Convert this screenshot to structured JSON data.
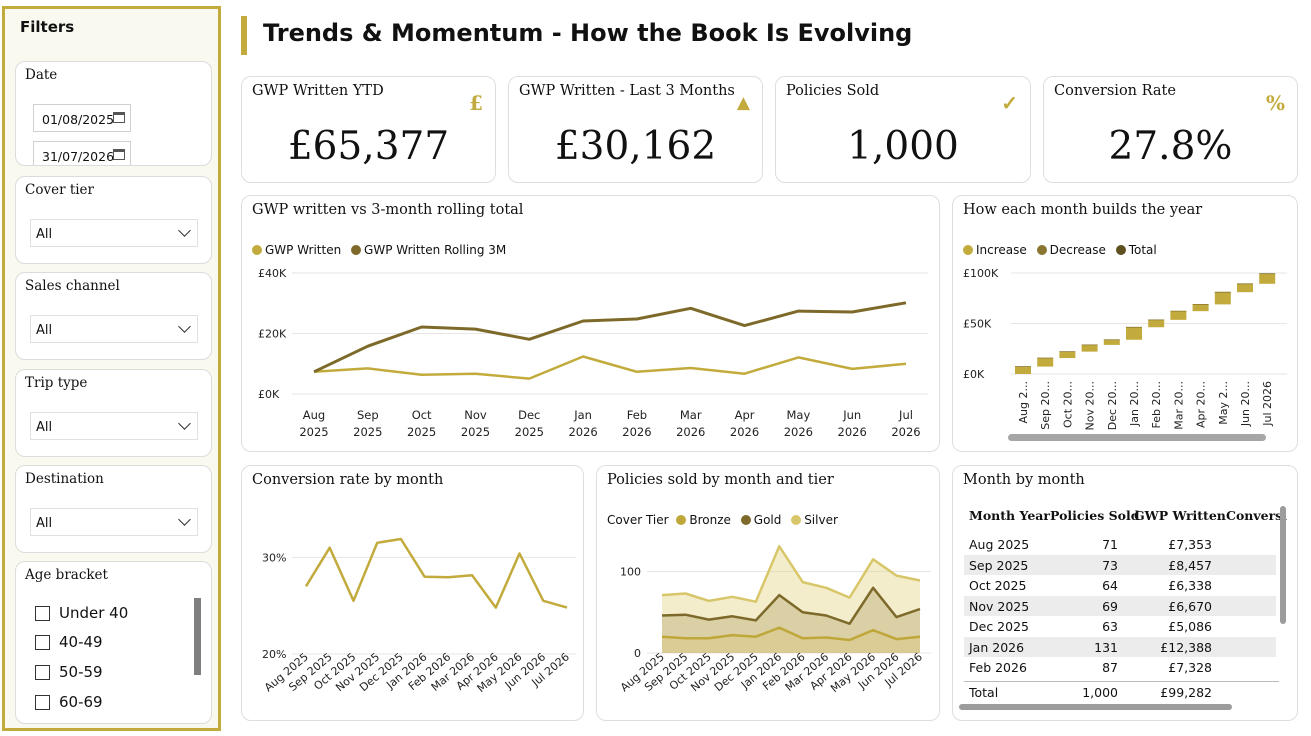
{
  "sidebar": {
    "title": "Filters",
    "date": {
      "label": "Date",
      "start": "01/08/2025",
      "end": "31/07/2026"
    },
    "cover_tier": {
      "label": "Cover tier",
      "value": "All"
    },
    "sales_channel": {
      "label": "Sales channel",
      "value": "All"
    },
    "trip_type": {
      "label": "Trip type",
      "value": "All"
    },
    "destination": {
      "label": "Destination",
      "value": "All"
    },
    "age_bracket": {
      "label": "Age bracket",
      "options": [
        "Under 40",
        "40-49",
        "50-59",
        "60-69"
      ]
    }
  },
  "header": {
    "title": "Trends & Momentum - How the Book Is Evolving"
  },
  "kpis": [
    {
      "label": "GWP Written YTD",
      "value": "£65,377",
      "icon": "pound-icon",
      "glyph": "£"
    },
    {
      "label": "GWP Written - Last 3 Months",
      "value": "£30,162",
      "icon": "triangle-up-icon",
      "glyph": "▲"
    },
    {
      "label": "Policies Sold",
      "value": "1,000",
      "icon": "checkmark-icon",
      "glyph": "✓"
    },
    {
      "label": "Conversion Rate",
      "value": "27.8%",
      "icon": "percent-icon",
      "glyph": "%"
    }
  ],
  "colors": {
    "accent": "#c2ab3c",
    "gold_dark": "#7d6a2a",
    "silver": "#d8c66a",
    "bronze": "#bfa73a"
  },
  "charts": {
    "gwp_line": {
      "title": "GWP written vs 3-month rolling total"
    },
    "waterfall": {
      "title": "How each month builds the year"
    },
    "conversion": {
      "title": "Conversion rate by month"
    },
    "policies_area": {
      "title": "Policies sold by month and tier"
    }
  },
  "chart_data": [
    {
      "type": "line",
      "x": [
        "Aug 2025",
        "Sep 2025",
        "Oct 2025",
        "Nov 2025",
        "Dec 2025",
        "Jan 2026",
        "Feb 2026",
        "Mar 2026",
        "Apr 2026",
        "May 2026",
        "Jun 2026",
        "Jul 2026"
      ],
      "yticks": [
        "£0K",
        "£20K",
        "£40K"
      ],
      "ylim": [
        0,
        40000
      ],
      "series": [
        {
          "name": "GWP Written",
          "values": [
            7353,
            8457,
            6338,
            6670,
            5086,
            12388,
            7328,
            8600,
            6700,
            12100,
            8300,
            10000
          ]
        },
        {
          "name": "GWP Written Rolling 3M",
          "values": [
            7353,
            15810,
            22148,
            21465,
            18094,
            24144,
            24802,
            28316,
            22628,
            27400,
            27100,
            30162
          ]
        }
      ],
      "legend": "top-left",
      "grid": true
    },
    {
      "type": "bar",
      "subtype": "waterfall",
      "categories": [
        "Aug 2...",
        "Sep 20...",
        "Oct 20...",
        "Nov 20...",
        "Dec 20...",
        "Jan 20...",
        "Feb 20...",
        "Mar 20...",
        "Apr 20...",
        "May 2...",
        "Jun 20...",
        "Jul 2026"
      ],
      "values": [
        7353,
        8457,
        6338,
        6670,
        5086,
        12388,
        7328,
        8600,
        6700,
        12100,
        8300,
        10000
      ],
      "legend_entries": [
        "Increase",
        "Decrease",
        "Total"
      ],
      "yticks": [
        "£0K",
        "£50K",
        "£100K"
      ],
      "ylim": [
        0,
        100000
      ]
    },
    {
      "type": "line",
      "x": [
        "Aug 2025",
        "Sep 2025",
        "Oct 2025",
        "Nov 2025",
        "Dec 2025",
        "Jan 2026",
        "Feb 2026",
        "Mar 2026",
        "Apr 2026",
        "May 2026",
        "Jun 2026",
        "Jul 2026"
      ],
      "values": [
        27.0,
        31.0,
        25.5,
        31.5,
        31.9,
        28.0,
        27.95,
        28.15,
        24.8,
        30.4,
        25.5,
        24.8
      ],
      "yticks": [
        "20%",
        "30%"
      ],
      "ylim": [
        20,
        32
      ]
    },
    {
      "type": "area",
      "x": [
        "Aug 2025",
        "Sep 2025",
        "Oct 2025",
        "Nov 2025",
        "Dec 2025",
        "Jan 2026",
        "Feb 2026",
        "Mar 2026",
        "Apr 2026",
        "May 2026",
        "Jun 2026",
        "Jul 2026"
      ],
      "legend_title": "Cover Tier",
      "series": [
        {
          "name": "Bronze",
          "values": [
            20,
            18,
            18,
            22,
            20,
            31,
            18,
            19,
            16,
            28,
            17,
            20
          ]
        },
        {
          "name": "Gold",
          "values": [
            46,
            47,
            41,
            45,
            40,
            71,
            50,
            46,
            36,
            80,
            44,
            54
          ]
        },
        {
          "name": "Silver",
          "values": [
            71,
            73,
            64,
            69,
            63,
            131,
            87,
            80,
            68,
            115,
            95,
            89
          ]
        }
      ],
      "yticks": [
        "0",
        "100"
      ],
      "ylim": [
        0,
        135
      ]
    }
  ],
  "table": {
    "title": "Month by month",
    "headers": [
      "Month Year",
      "Policies Sold",
      "GWP Written",
      "Conversi"
    ],
    "rows": [
      [
        "Aug 2025",
        "71",
        "£7,353"
      ],
      [
        "Sep 2025",
        "73",
        "£8,457"
      ],
      [
        "Oct 2025",
        "64",
        "£6,338"
      ],
      [
        "Nov 2025",
        "69",
        "£6,670"
      ],
      [
        "Dec 2025",
        "63",
        "£5,086"
      ],
      [
        "Jan 2026",
        "131",
        "£12,388"
      ],
      [
        "Feb 2026",
        "87",
        "£7,328"
      ]
    ],
    "total": [
      "Total",
      "1,000",
      "£99,282"
    ]
  }
}
